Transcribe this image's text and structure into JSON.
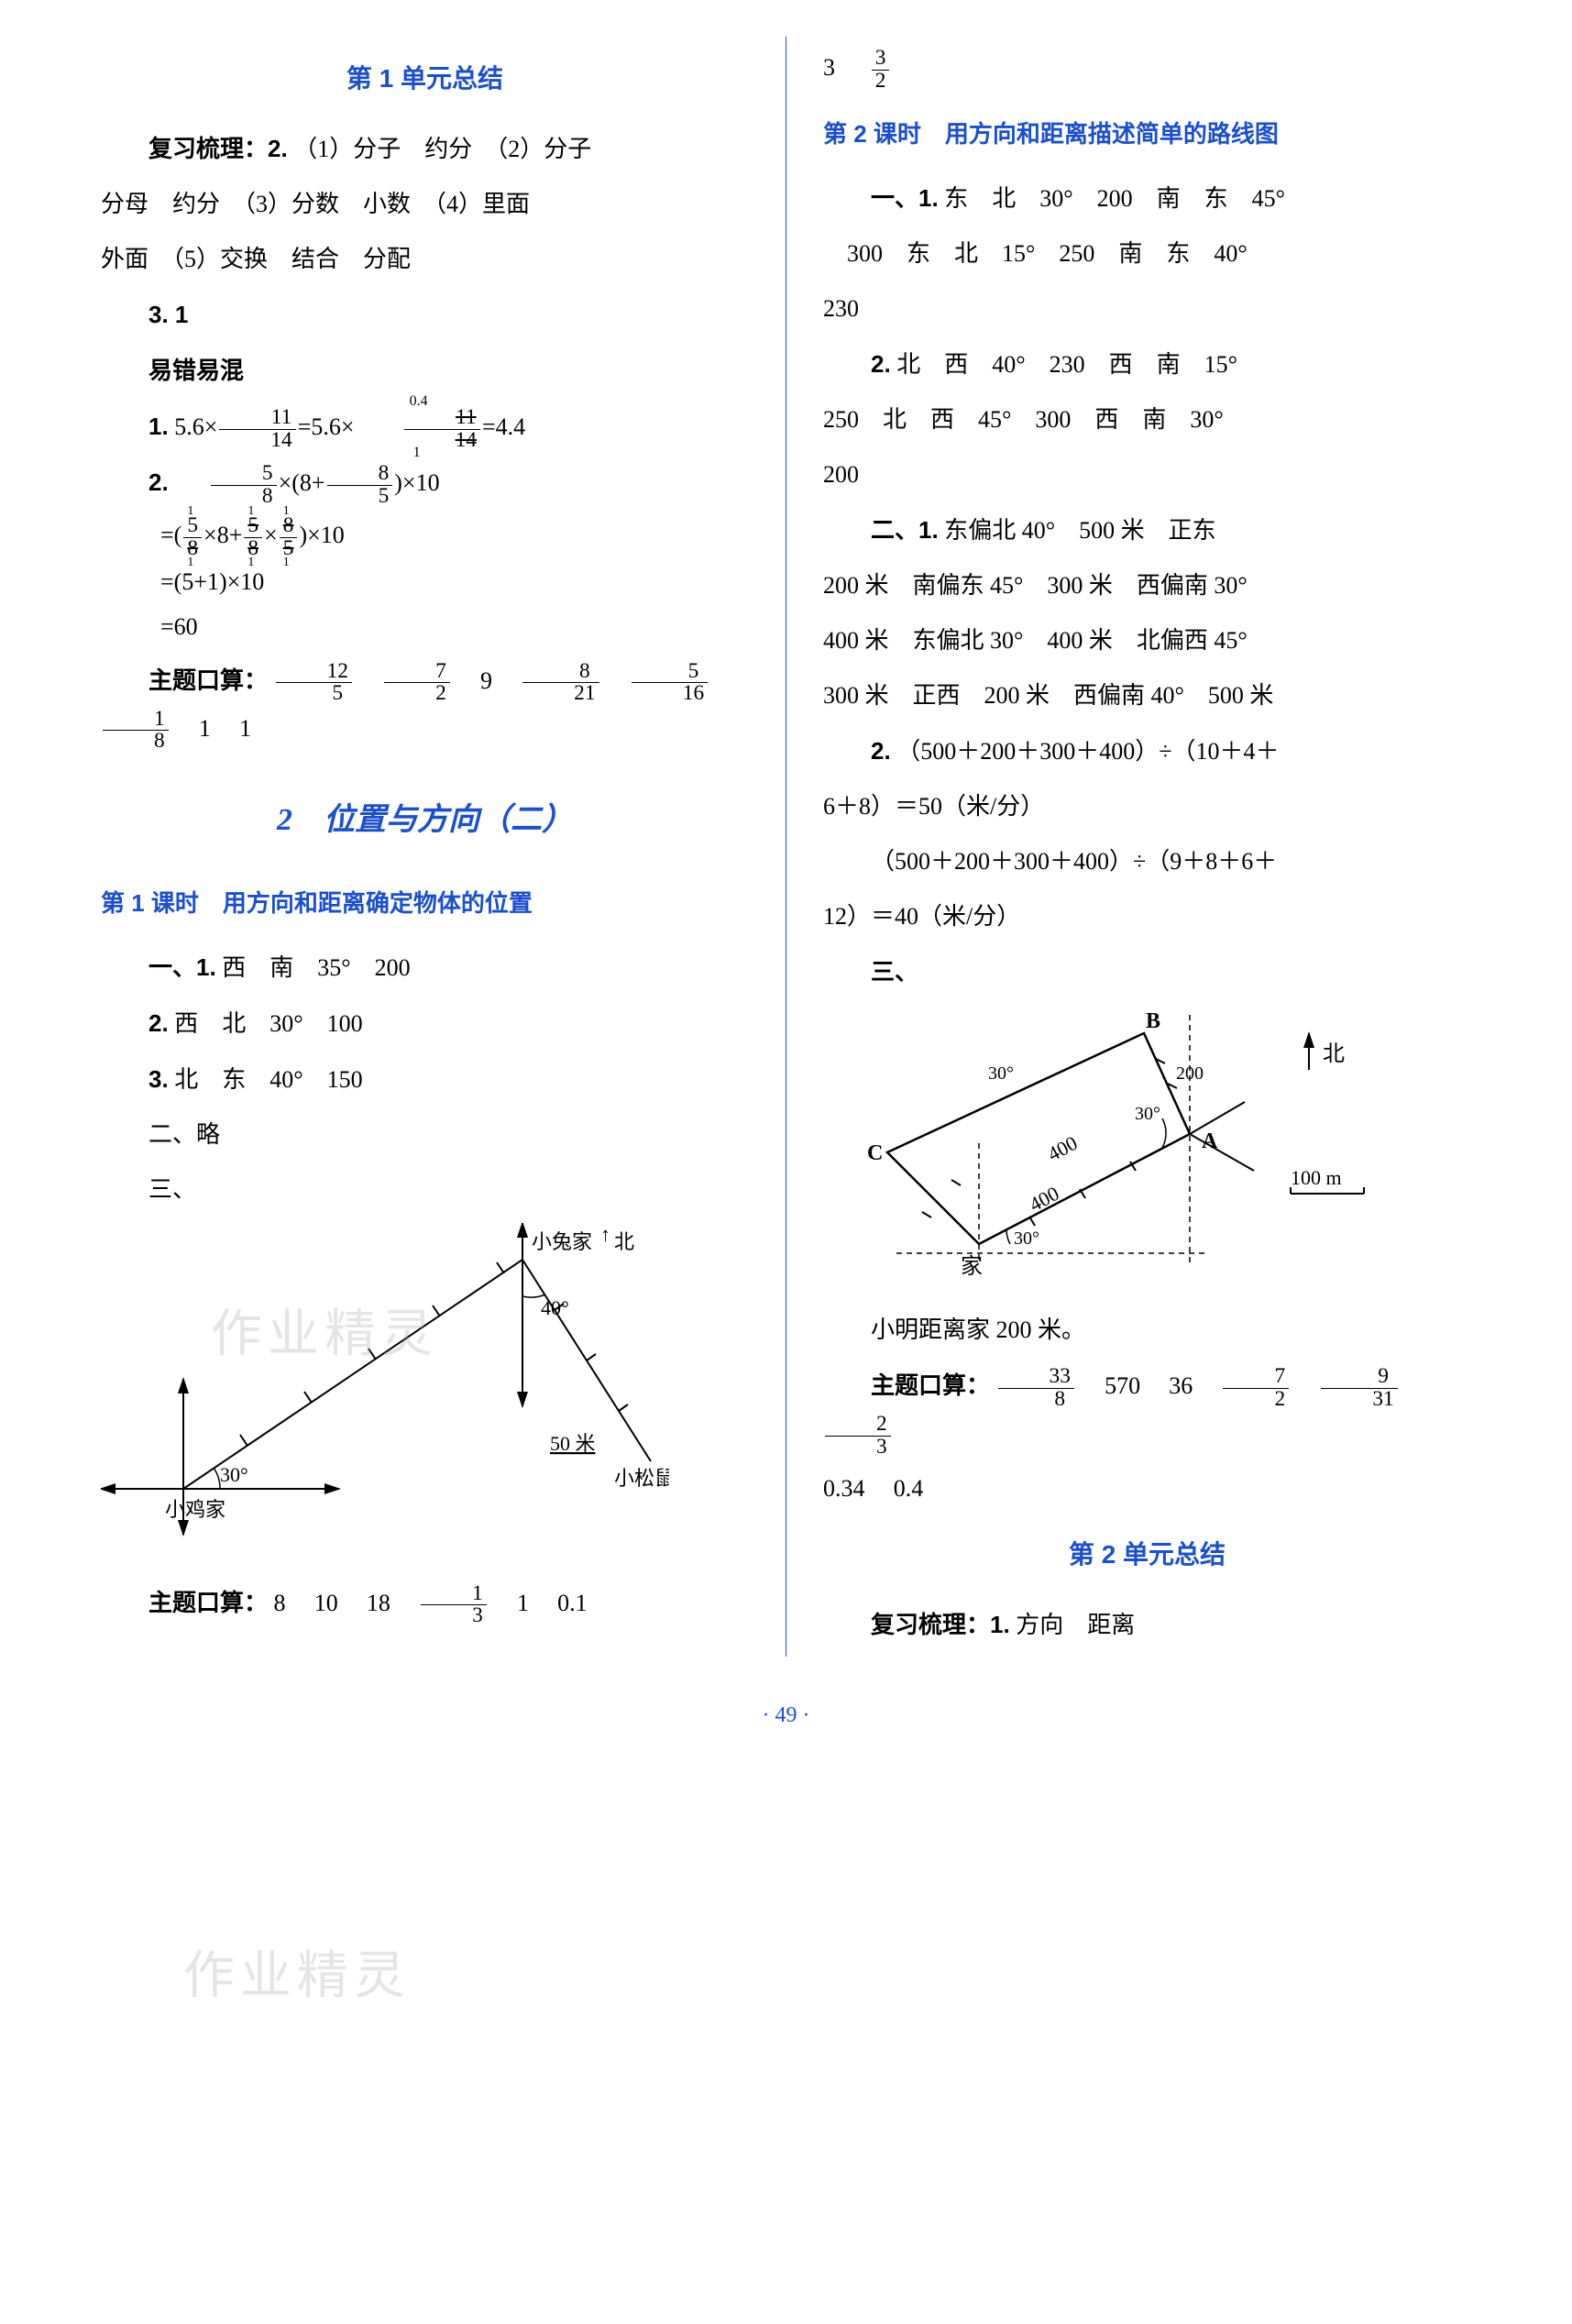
{
  "page_number": "49",
  "footer_dots": "·",
  "left": {
    "h1": "第 1 单元总结",
    "fuxi_label": "复习梳理：2.",
    "fuxi_line1": "（1）分子　约分　（2）分子",
    "fuxi_line2": "分母　约分　（3）分数　小数　（4）里面",
    "fuxi_line3": "外面　（5）交换　结合　分配",
    "item3": "3. 1",
    "yicuo": "易错易混",
    "eq1_label": "1.",
    "eq1_expr_a": "5.6×",
    "eq1_frac1_num": "11",
    "eq1_frac1_den": "14",
    "eq1_mid": "=5.6×",
    "eq1_frac2_num": "11",
    "eq1_frac2_den": "14",
    "eq1_cancel_top": "0.4",
    "eq1_cancel_bot": "1",
    "eq1_res": "=4.4",
    "eq2_label": "2.",
    "eq2_r1_a": "×(8+",
    "eq2_r1_b": ")×10",
    "eq2_58_num": "5",
    "eq2_58_den": "8",
    "eq2_85_num": "8",
    "eq2_85_den": "5",
    "eq2_r2_open": "=(",
    "eq2_r2_mid1": "×8+",
    "eq2_r2_mid2": "×",
    "eq2_r2_close": ")×10",
    "eq2_cancel_1": "1",
    "eq2_r3": "=(5+1)×10",
    "eq2_r4": "=60",
    "zkousuan_label": "主题口算：",
    "zk1": [
      {
        "num": "12",
        "den": "5"
      },
      {
        "num": "7",
        "den": "2"
      },
      "9",
      {
        "num": "8",
        "den": "21"
      },
      {
        "num": "5",
        "den": "16"
      },
      {
        "num": "1",
        "den": "8"
      },
      "1",
      "1"
    ],
    "chapter2": "2　位置与方向（二）",
    "lesson1": "第 1 课时　用方向和距离确定物体的位置",
    "sec1_1_label": "一、1.",
    "sec1_1": "西　南　35°　200",
    "sec1_2_label": "2.",
    "sec1_2": "西　北　30°　100",
    "sec1_3_label": "3.",
    "sec1_3": "北　东　40°　150",
    "sec2": "二、略",
    "sec3": "三、",
    "diagram1": {
      "labels": {
        "rabbit": "小兔家",
        "north": "北",
        "angle40": "40°",
        "angle30": "30°",
        "fifty": "50 米",
        "squirrel": "小松鼠家",
        "chicken": "小鸡家"
      },
      "colors": {
        "stroke": "#000000",
        "text": "#000000"
      }
    },
    "zk2_label": "主题口算：",
    "zk2": [
      "8",
      "10",
      "18",
      {
        "num": "1",
        "den": "3"
      },
      "1",
      "0.1"
    ]
  },
  "right": {
    "topline_a": "3",
    "topline_frac": {
      "num": "3",
      "den": "2"
    },
    "lesson2": "第 2 课时　用方向和距离描述简单的路线图",
    "s1_1_label": "一、1.",
    "s1_1_line1": "东　北　30°　200　南　东　45°",
    "s1_1_line2": "300　东　北　15°　250　南　东　40°",
    "s1_1_line3": "230",
    "s1_2_label": "2.",
    "s1_2_line1": "北　西　40°　230　西　南　15°",
    "s1_2_line2": "250　北　西　45°　300　西　南　30°",
    "s1_2_line3": "200",
    "s2_1_label": "二、1.",
    "s2_1_line1": "东偏北 40°　500 米　正东",
    "s2_1_line2": "200 米　南偏东 45°　300 米　西偏南 30°",
    "s2_1_line3": "400 米　东偏北 30°　400 米　北偏西 45°",
    "s2_1_line4": "300 米　正西　200 米　西偏南 40°　500 米",
    "s2_2_label": "2.",
    "s2_2_line1": "（500＋200＋300＋400）÷（10＋4＋",
    "s2_2_line2": "6＋8）＝50（米/分）",
    "s2_2_line3": "（500＋200＋300＋400）÷（9＋8＋6＋",
    "s2_2_line4": "12）＝40（米/分）",
    "s3_label": "三、",
    "diagram2": {
      "labels": {
        "B": "B",
        "A": "A",
        "C": "C",
        "north": "北",
        "home": "家",
        "a30": "30°",
        "len200": "200",
        "len400": "400",
        "scale": "100 m"
      },
      "colors": {
        "stroke": "#000000",
        "text": "#000000"
      }
    },
    "xiaoming": "小明距离家 200 米。",
    "zk3_label": "主题口算：",
    "zk3_a": [
      {
        "num": "33",
        "den": "8"
      },
      "570",
      "36",
      {
        "num": "7",
        "den": "2"
      },
      {
        "num": "9",
        "den": "31"
      },
      {
        "num": "2",
        "den": "3"
      }
    ],
    "zk3_b": [
      "0.34",
      "0.4"
    ],
    "unit2_summary": "第 2 单元总结",
    "fuxi2_label": "复习梳理：1.",
    "fuxi2_line": "方向　距离"
  },
  "watermark_text": "作业精灵"
}
